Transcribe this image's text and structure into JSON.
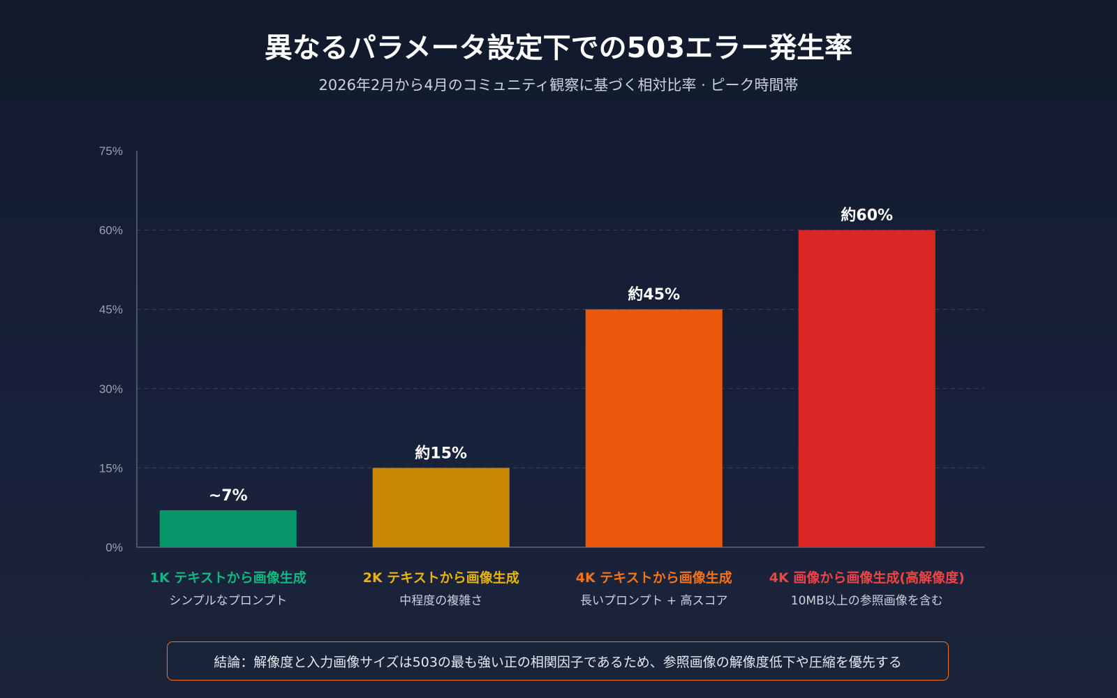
{
  "title": "異なるパラメータ設定下での503エラー発生率",
  "subtitle": "2026年2月から4月のコミュニティ観察に基づく相対比率 · ピーク時間帯",
  "conclusion": "結論：解像度と入力画像サイズは503の最も強い正の相関因子であるため、参照画像の解像度低下や圧縮を優先する",
  "chart_data": {
    "type": "bar",
    "title": "異なるパラメータ設定下での503エラー発生率",
    "subtitle": "2026年2月から4月のコミュニティ観察に基づく相対比率 · ピーク時間帯",
    "categories": [
      "1K テキストから画像生成",
      "2K テキストから画像生成",
      "4K テキストから画像生成",
      "4K 画像から画像生成(高解像度)"
    ],
    "category_sublabels": [
      "シンプルなプロンプト",
      "中程度の複雑さ",
      "長いプロンプト + 高スコア",
      "10MB以上の参照画像を含む"
    ],
    "values": [
      7,
      15,
      45,
      60
    ],
    "data_labels": [
      "~7%",
      "約15%",
      "約45%",
      "約60%"
    ],
    "colors": [
      "#079669",
      "#c98904",
      "#ea580c",
      "#dc2626"
    ],
    "label_colors": [
      "#10b981",
      "#eab308",
      "#f97316",
      "#ef4444"
    ],
    "ylim": [
      0,
      75
    ],
    "yticks": [
      0,
      15,
      30,
      45,
      60,
      75
    ],
    "ytick_labels": [
      "0%",
      "15%",
      "30%",
      "45%",
      "60%",
      "75%"
    ],
    "grid": true,
    "xlabel": "",
    "ylabel": ""
  }
}
